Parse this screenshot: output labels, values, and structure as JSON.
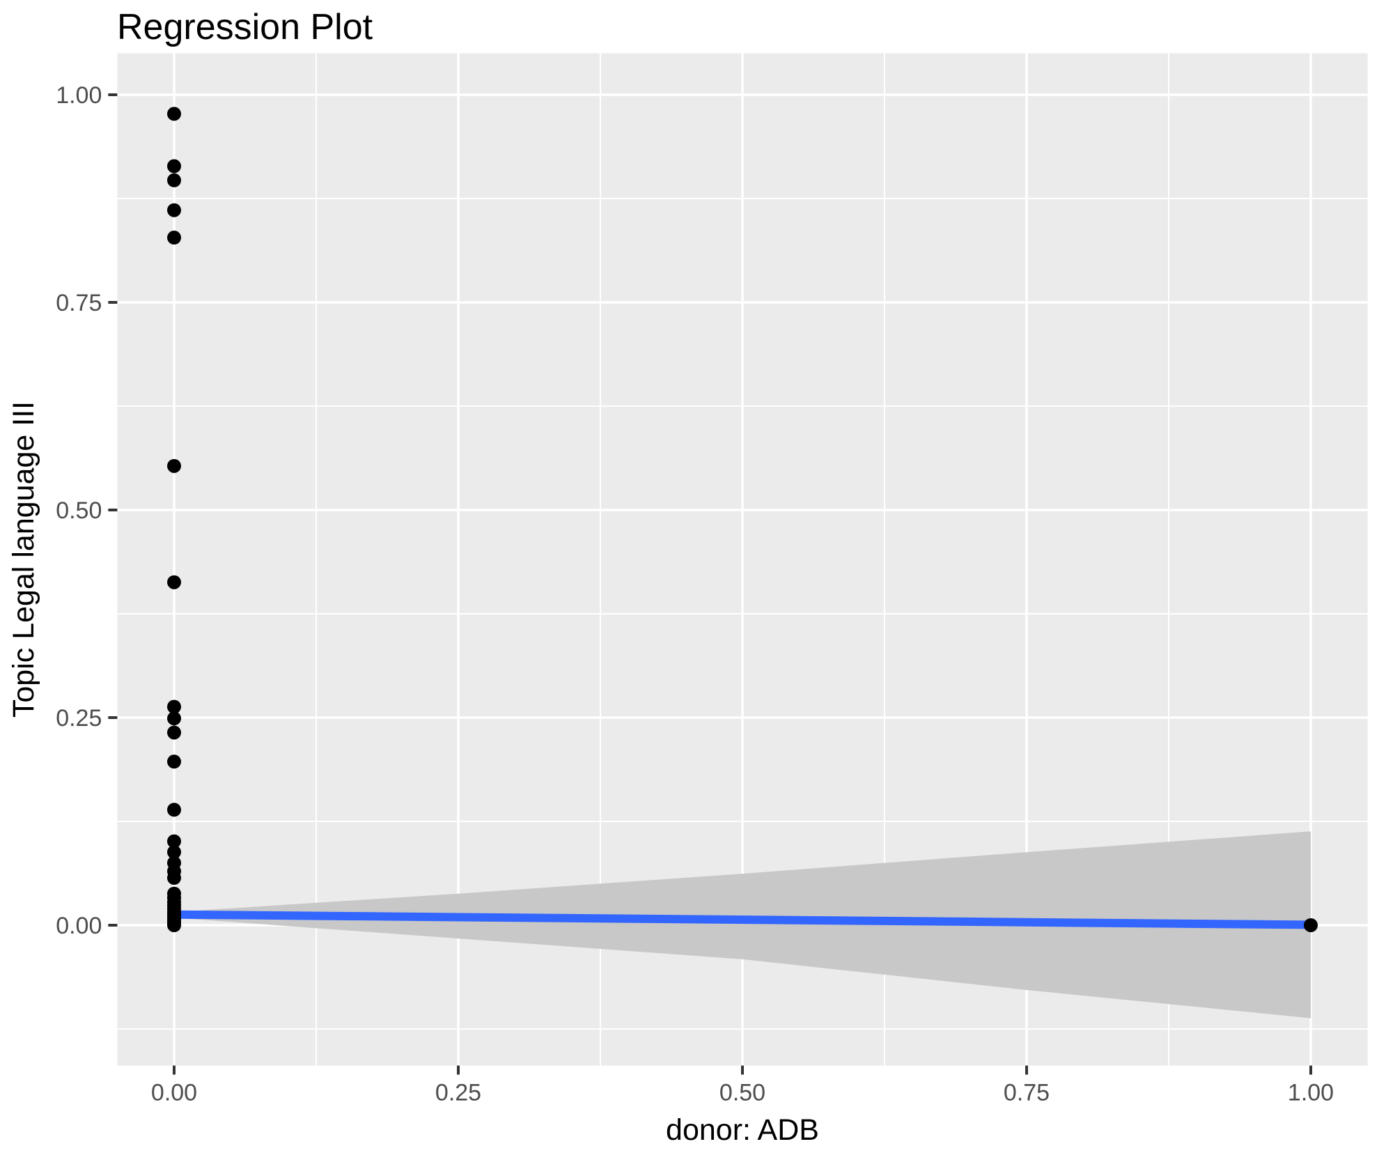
{
  "title": "Regression Plot",
  "chart_data": {
    "type": "scatter",
    "title": "Regression Plot",
    "xlabel": "donor: ADB",
    "ylabel": "Topic Legal language III",
    "xlim": [
      -0.05,
      1.05
    ],
    "ylim": [
      -0.169,
      1.05
    ],
    "grid": true,
    "legend_position": "none",
    "x_tick_values": [
      0,
      0.25,
      0.5,
      0.75,
      1.0
    ],
    "x_tick_labels": [
      "0.00",
      "0.25",
      "0.50",
      "0.75",
      "1.00"
    ],
    "y_tick_values": [
      0,
      0.25,
      0.5,
      0.75,
      1.0
    ],
    "y_tick_labels": [
      "0.00",
      "0.25",
      "0.50",
      "0.75",
      "1.00"
    ],
    "x_minor_gridlines": [
      0.125,
      0.375,
      0.625,
      0.875
    ],
    "y_minor_gridlines": [
      -0.125,
      0.125,
      0.375,
      0.625,
      0.875
    ],
    "points": [
      [
        0,
        0.977
      ],
      [
        0,
        0.914
      ],
      [
        0,
        0.897
      ],
      [
        0,
        0.861
      ],
      [
        0,
        0.828
      ],
      [
        0,
        0.553
      ],
      [
        0,
        0.413
      ],
      [
        0,
        0.263
      ],
      [
        0,
        0.249
      ],
      [
        0,
        0.232
      ],
      [
        0,
        0.197
      ],
      [
        0,
        0.139
      ],
      [
        0,
        0.101
      ],
      [
        0,
        0.088
      ],
      [
        0,
        0.075
      ],
      [
        0,
        0.065
      ],
      [
        0,
        0.057
      ],
      [
        0,
        0.038
      ],
      [
        0,
        0.033
      ],
      [
        0,
        0.028
      ],
      [
        0,
        0.024
      ],
      [
        0,
        0.02
      ],
      [
        0,
        0.016
      ],
      [
        0,
        0.013
      ],
      [
        0,
        0.01
      ],
      [
        0,
        0.007
      ],
      [
        0,
        0.004
      ],
      [
        0,
        0.002
      ],
      [
        0,
        0.0
      ],
      [
        1,
        0.0
      ]
    ],
    "regression_line": {
      "x1": 0,
      "y1": 0.0128,
      "x2": 1,
      "y2": 0.0005
    },
    "confidence_band": {
      "x": [
        0,
        0.25,
        0.5,
        0.75,
        1.0
      ],
      "upper": [
        0.016,
        0.038,
        0.062,
        0.088,
        0.113
      ],
      "lower": [
        0.009,
        -0.016,
        -0.041,
        -0.078,
        -0.112
      ]
    },
    "colors": {
      "background": "#FFFFFF",
      "panel": "#EBEBEB",
      "grid": "#FFFFFF",
      "band": "#C8C8C8",
      "line": "#3366FF",
      "point": "#000000",
      "tick_label": "#4D4D4D",
      "tick_mark": "#333333",
      "text": "#000000"
    }
  }
}
